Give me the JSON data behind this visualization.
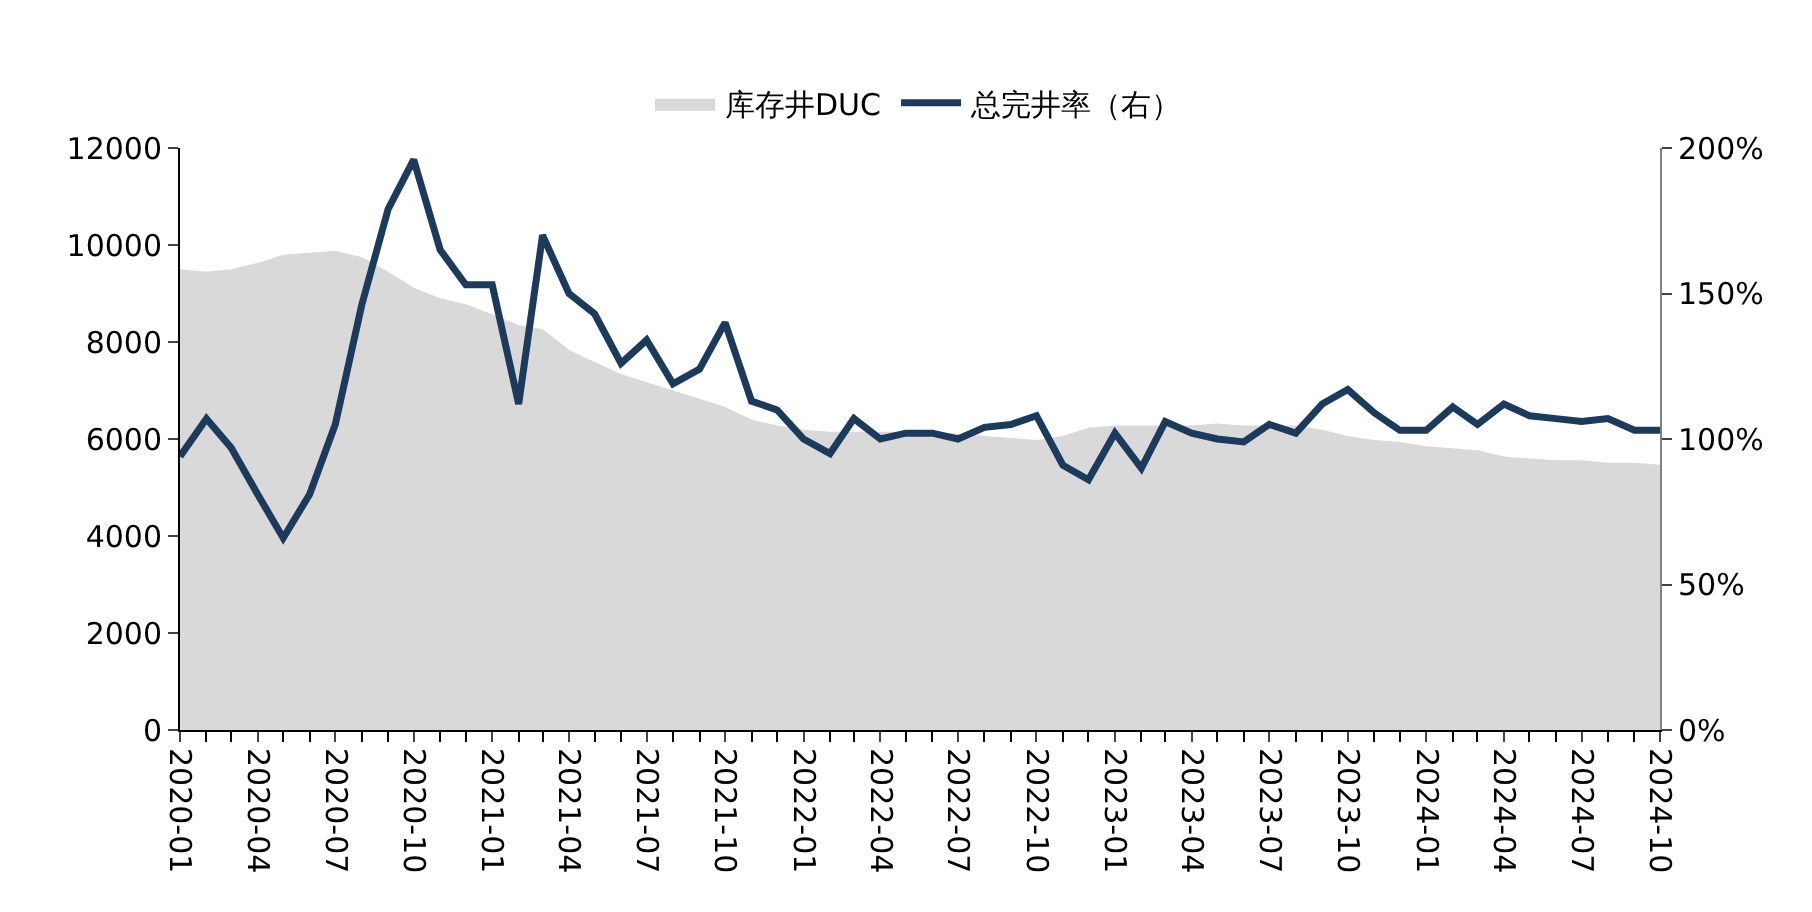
{
  "chart_data": {
    "type": "area",
    "x": [
      "2020-01",
      "2020-02",
      "2020-03",
      "2020-04",
      "2020-05",
      "2020-06",
      "2020-07",
      "2020-08",
      "2020-09",
      "2020-10",
      "2020-11",
      "2020-12",
      "2021-01",
      "2021-02",
      "2021-03",
      "2021-04",
      "2021-05",
      "2021-06",
      "2021-07",
      "2021-08",
      "2021-09",
      "2021-10",
      "2021-11",
      "2021-12",
      "2022-01",
      "2022-02",
      "2022-03",
      "2022-04",
      "2022-05",
      "2022-06",
      "2022-07",
      "2022-08",
      "2022-09",
      "2022-10",
      "2022-11",
      "2022-12",
      "2023-01",
      "2023-02",
      "2023-03",
      "2023-04",
      "2023-05",
      "2023-06",
      "2023-07",
      "2023-08",
      "2023-09",
      "2023-10",
      "2023-11",
      "2023-12",
      "2024-01",
      "2024-02",
      "2024-03",
      "2024-04",
      "2024-05",
      "2024-06",
      "2024-07",
      "2024-08",
      "2024-09",
      "2024-10"
    ],
    "series": [
      {
        "name": "库存井DUC",
        "color": "#d9d9d9",
        "values": [
          9500,
          9450,
          9500,
          9630,
          9800,
          9840,
          9880,
          9750,
          9450,
          9120,
          8900,
          8780,
          8570,
          8350,
          8270,
          7840,
          7590,
          7340,
          7170,
          7000,
          6830,
          6660,
          6400,
          6280,
          6190,
          6150,
          6150,
          6150,
          6150,
          6150,
          6110,
          6060,
          6020,
          5980,
          6060,
          6230,
          6280,
          6280,
          6280,
          6280,
          6320,
          6280,
          6280,
          6280,
          6190,
          6060,
          5980,
          5940,
          5850,
          5810,
          5770,
          5640,
          5600,
          5560,
          5560,
          5510,
          5510,
          5470
        ]
      },
      {
        "name": "总完井率（右）",
        "type": "line",
        "axis": "y2",
        "color": "#1b3a5c",
        "values": [
          94,
          107,
          97,
          81,
          66,
          81,
          105,
          146,
          179,
          196,
          165,
          153,
          153,
          112,
          170,
          150,
          143,
          126,
          134,
          119,
          124,
          140,
          113,
          110,
          100,
          95,
          107,
          100,
          102,
          102,
          100,
          104,
          105,
          108,
          91,
          86,
          102,
          90,
          106,
          102,
          100,
          99,
          105,
          102,
          112,
          117,
          109,
          103,
          103,
          111,
          105,
          112,
          108,
          107,
          106,
          107,
          103,
          103
        ]
      }
    ],
    "xlim": [
      "2020-01",
      "2024-10"
    ],
    "xticks": [
      "2020-01",
      "2020-04",
      "2020-07",
      "2020-10",
      "2021-01",
      "2021-04",
      "2021-07",
      "2021-10",
      "2022-01",
      "2022-04",
      "2022-07",
      "2022-10",
      "2023-01",
      "2023-04",
      "2023-07",
      "2023-10",
      "2024-01",
      "2024-04",
      "2024-07",
      "2024-10"
    ],
    "ylim": [
      0,
      12000
    ],
    "yticks": [
      0,
      2000,
      4000,
      6000,
      8000,
      10000,
      12000
    ],
    "y2lim": [
      0,
      200
    ],
    "y2ticks": [
      {
        "value": 0,
        "label": "0%"
      },
      {
        "value": 50,
        "label": "50%"
      },
      {
        "value": 100,
        "label": "100%"
      },
      {
        "value": 150,
        "label": "150%"
      },
      {
        "value": 200,
        "label": "200%"
      }
    ],
    "legend": "top",
    "marker": "none",
    "line_style": "solid"
  }
}
